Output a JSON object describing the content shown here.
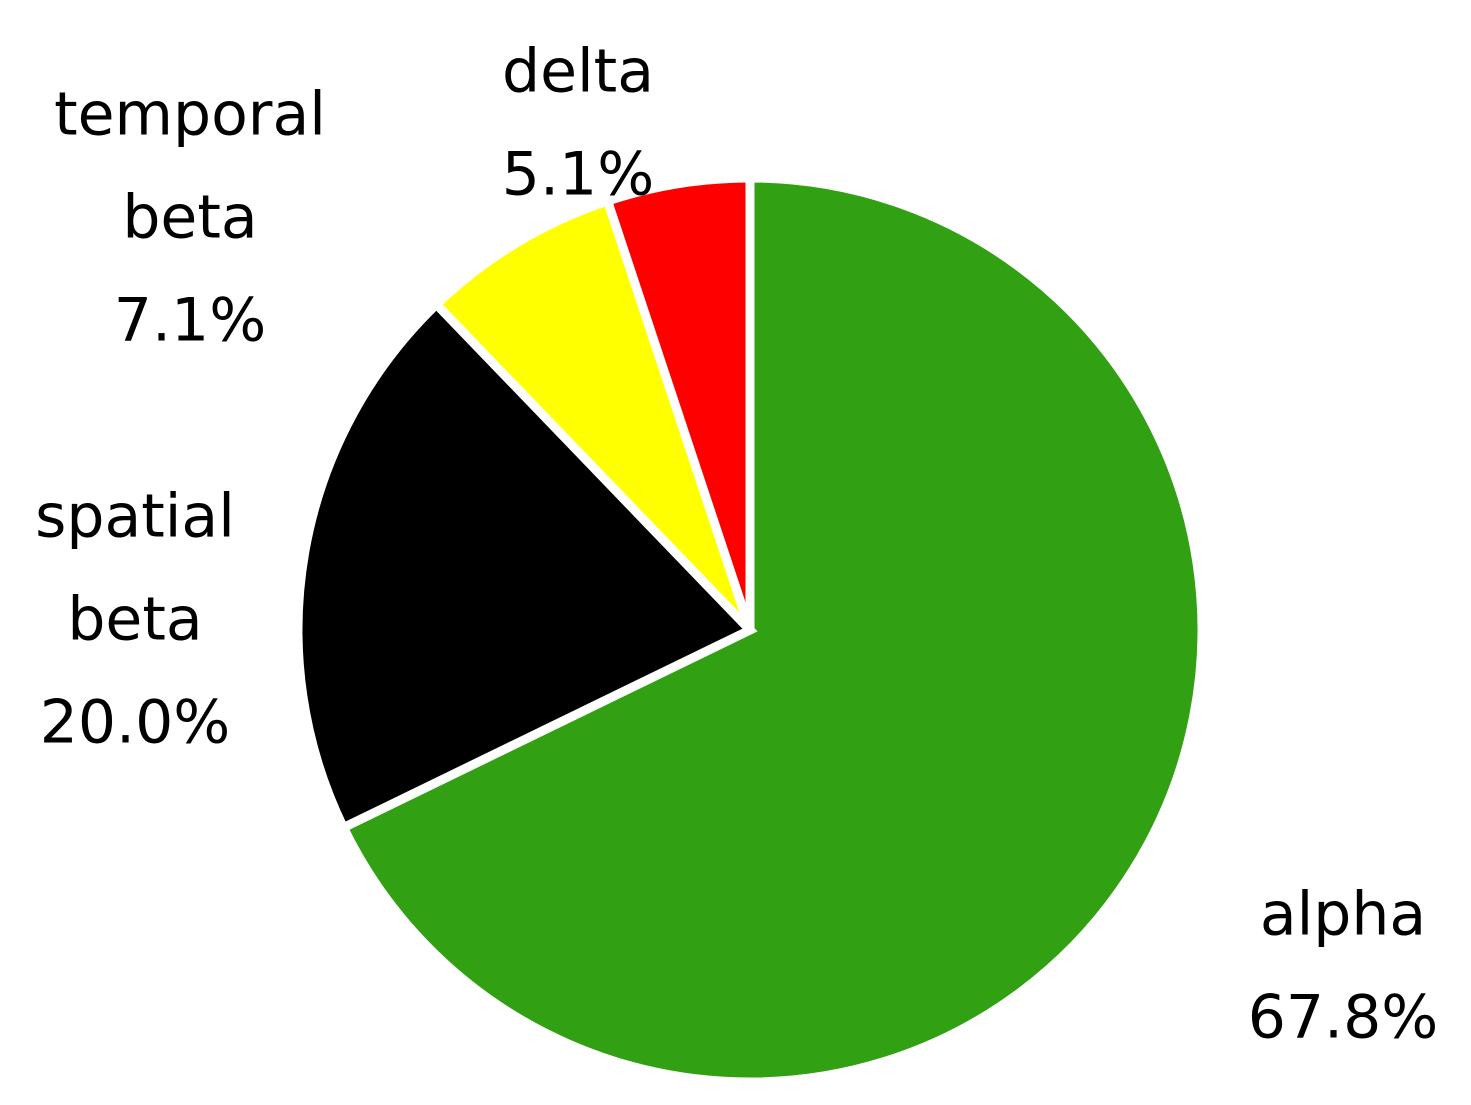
{
  "chart_data": {
    "type": "pie",
    "title": "",
    "slices": [
      {
        "name": "alpha",
        "value": 67.8,
        "label_lines": [
          "alpha"
        ],
        "percent_label": "67.8%",
        "color": "#31a012"
      },
      {
        "name": "spatial beta",
        "value": 20.0,
        "label_lines": [
          "spatial",
          "beta"
        ],
        "percent_label": "20.0%",
        "color": "#000000"
      },
      {
        "name": "temporal beta",
        "value": 7.1,
        "label_lines": [
          "temporal",
          "beta"
        ],
        "percent_label": "7.1%",
        "color": "#ffff00"
      },
      {
        "name": "delta",
        "value": 5.1,
        "label_lines": [
          "delta"
        ],
        "percent_label": "5.1%",
        "color": "#ff0000"
      }
    ],
    "start_angle": "12 o'clock",
    "direction": "clockwise",
    "legend": "none",
    "labels": "outside"
  }
}
